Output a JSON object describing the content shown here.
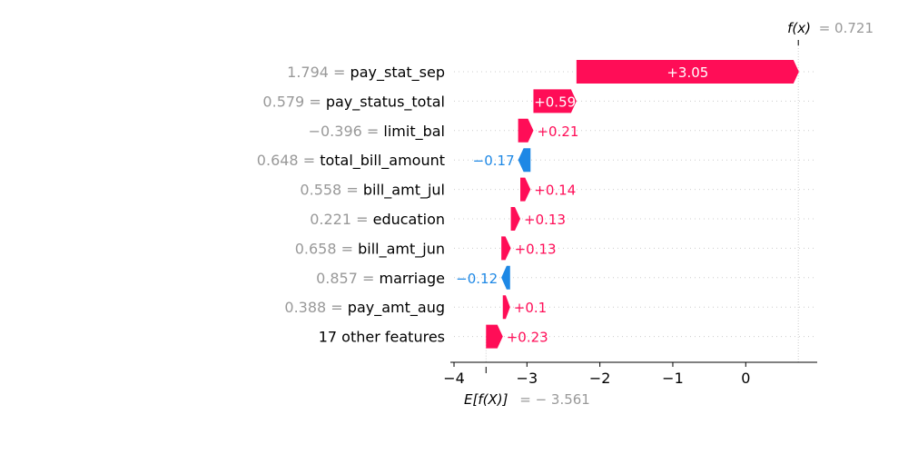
{
  "chart_data": {
    "type": "waterfall",
    "title": "",
    "base_value": -3.561,
    "output_value": 0.721,
    "base_label_text": "E[f(X)]",
    "base_value_text": "= − 3.561",
    "output_label_text": "f(x)",
    "output_value_text": "= 0.721",
    "xlim": [
      -4.05,
      0.98
    ],
    "ticks": [
      {
        "value": -4,
        "label": "−4"
      },
      {
        "value": -3,
        "label": "−3"
      },
      {
        "value": -2,
        "label": "−2"
      },
      {
        "value": -1,
        "label": "−1"
      },
      {
        "value": 0,
        "label": "0"
      }
    ],
    "colors": {
      "positive": "#ff0d57",
      "negative": "#1e88e5",
      "muted": "#999999"
    },
    "features": [
      {
        "value_text": "1.794 =",
        "name": "pay_stat_sep",
        "contribution": 3.05,
        "label": "+3.05"
      },
      {
        "value_text": "0.579 =",
        "name": "pay_status_total",
        "contribution": 0.59,
        "label": "+0.59"
      },
      {
        "value_text": "−0.396 =",
        "name": "limit_bal",
        "contribution": 0.21,
        "label": "+0.21"
      },
      {
        "value_text": "0.648 =",
        "name": "total_bill_amount",
        "contribution": -0.17,
        "label": "−0.17"
      },
      {
        "value_text": "0.558 =",
        "name": "bill_amt_jul",
        "contribution": 0.14,
        "label": "+0.14"
      },
      {
        "value_text": "0.221 =",
        "name": "education",
        "contribution": 0.13,
        "label": "+0.13"
      },
      {
        "value_text": "0.658 =",
        "name": "bill_amt_jun",
        "contribution": 0.13,
        "label": "+0.13"
      },
      {
        "value_text": "0.857 =",
        "name": "marriage",
        "contribution": -0.12,
        "label": "−0.12"
      },
      {
        "value_text": "0.388 =",
        "name": "pay_amt_aug",
        "contribution": 0.1,
        "label": "+0.1"
      },
      {
        "value_text": "",
        "name": "17 other features",
        "contribution": 0.23,
        "label": "+0.23"
      }
    ]
  }
}
